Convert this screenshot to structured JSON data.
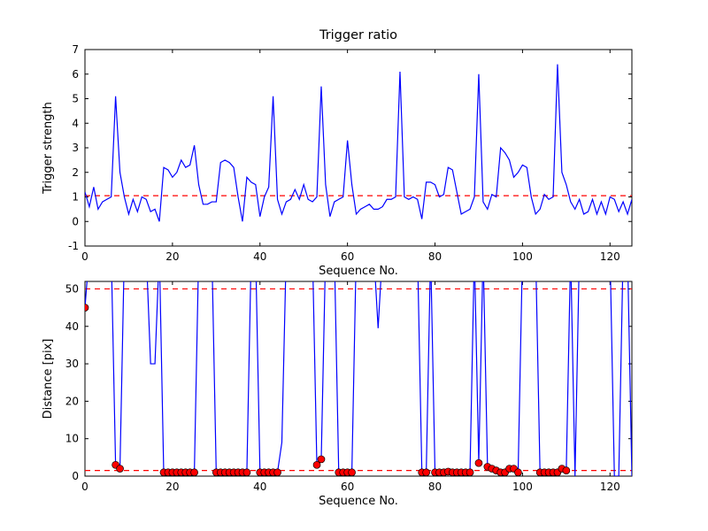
{
  "figure": {
    "background": "#ffffff",
    "line_color": "#0000ff",
    "threshold_color": "#ff0000",
    "marker_face_color": "#ff0000",
    "marker_edge_color": "#000000",
    "axis_color": "#000000"
  },
  "chart_data": [
    {
      "type": "line",
      "title": "Trigger ratio",
      "xlabel": "Sequence No.",
      "ylabel": "Trigger strength",
      "xlim": [
        0,
        125
      ],
      "ylim": [
        -1,
        7
      ],
      "xticks": [
        0,
        20,
        40,
        60,
        80,
        100,
        120
      ],
      "yticks": [
        -1,
        0,
        1,
        2,
        3,
        4,
        5,
        6,
        7
      ],
      "grid": false,
      "legend": "none",
      "threshold_lines": [
        1.05
      ],
      "x_mode": "index",
      "y": [
        1.2,
        0.6,
        1.4,
        0.5,
        0.8,
        0.9,
        1.0,
        5.1,
        2.0,
        1.0,
        0.3,
        0.9,
        0.4,
        1.0,
        0.9,
        0.4,
        0.5,
        0.0,
        2.2,
        2.1,
        1.8,
        2.0,
        2.5,
        2.2,
        2.3,
        3.1,
        1.5,
        0.7,
        0.7,
        0.8,
        0.8,
        2.4,
        2.5,
        2.4,
        2.2,
        1.0,
        0.0,
        1.8,
        1.6,
        1.5,
        0.2,
        1.0,
        1.4,
        5.1,
        0.9,
        0.3,
        0.8,
        0.9,
        1.3,
        0.9,
        1.5,
        0.9,
        0.8,
        1.0,
        5.5,
        1.5,
        0.2,
        0.8,
        0.9,
        1.0,
        3.3,
        1.5,
        0.3,
        0.5,
        0.6,
        0.7,
        0.5,
        0.5,
        0.6,
        0.9,
        0.9,
        1.0,
        6.1,
        1.0,
        0.9,
        1.0,
        0.9,
        0.1,
        1.6,
        1.6,
        1.5,
        1.0,
        1.1,
        2.2,
        2.1,
        1.2,
        0.3,
        0.4,
        0.5,
        1.0,
        6.0,
        0.8,
        0.5,
        1.1,
        1.0,
        3.0,
        2.8,
        2.5,
        1.8,
        2.0,
        2.3,
        2.2,
        1.0,
        0.3,
        0.5,
        1.1,
        0.9,
        1.0,
        6.4,
        2.0,
        1.5,
        0.8,
        0.5,
        0.9,
        0.3,
        0.4,
        0.9,
        0.3,
        0.8,
        0.3,
        1.0,
        0.9,
        0.4,
        0.8,
        0.3,
        0.9
      ]
    },
    {
      "type": "line",
      "title": "",
      "xlabel": "Sequence No.",
      "ylabel": "Distance [pix]",
      "xlim": [
        0,
        125
      ],
      "ylim": [
        0,
        52
      ],
      "xticks": [
        0,
        20,
        40,
        60,
        80,
        100,
        120
      ],
      "yticks": [
        0,
        10,
        20,
        30,
        40,
        50
      ],
      "grid": false,
      "legend": "none",
      "threshold_lines": [
        50,
        1.5
      ],
      "x_mode": "index",
      "offscale_value": 60,
      "y": [
        45,
        60,
        60,
        60,
        60,
        60,
        60,
        3,
        2,
        60,
        60,
        60,
        60,
        60,
        60,
        30,
        30,
        60,
        1,
        1,
        1,
        1,
        1,
        1,
        1,
        1,
        60,
        60,
        60,
        60,
        1,
        1,
        1,
        1,
        1,
        1,
        1,
        1,
        60,
        60,
        1,
        1,
        1,
        1,
        1,
        9,
        60,
        60,
        60,
        60,
        60,
        60,
        60,
        3,
        4.5,
        60,
        60,
        60,
        1,
        1,
        1,
        1,
        60,
        60,
        60,
        60,
        60,
        39.5,
        60,
        60,
        60,
        60,
        60,
        60,
        60,
        60,
        60,
        1,
        1,
        60,
        1,
        1,
        1,
        1.2,
        1,
        1,
        1,
        1,
        1,
        60,
        3.5,
        60,
        2.5,
        2,
        1.5,
        1,
        1,
        2,
        2,
        1,
        60,
        60,
        60,
        60,
        1,
        1,
        1,
        1,
        1,
        2,
        1.5,
        60,
        0,
        60,
        60,
        60,
        60,
        60,
        60,
        60,
        60,
        0,
        0,
        60,
        60,
        0
      ],
      "markers": [
        [
          0,
          45
        ],
        [
          7,
          3
        ],
        [
          8,
          2
        ],
        [
          18,
          1
        ],
        [
          19,
          1
        ],
        [
          20,
          1
        ],
        [
          21,
          1
        ],
        [
          22,
          1
        ],
        [
          23,
          1
        ],
        [
          24,
          1
        ],
        [
          25,
          1
        ],
        [
          30,
          1
        ],
        [
          31,
          1
        ],
        [
          32,
          1
        ],
        [
          33,
          1
        ],
        [
          34,
          1
        ],
        [
          35,
          1
        ],
        [
          36,
          1
        ],
        [
          37,
          1
        ],
        [
          40,
          1
        ],
        [
          41,
          1
        ],
        [
          42,
          1
        ],
        [
          43,
          1
        ],
        [
          44,
          1
        ],
        [
          53,
          3
        ],
        [
          54,
          4.5
        ],
        [
          58,
          1
        ],
        [
          59,
          1
        ],
        [
          60,
          1
        ],
        [
          61,
          1
        ],
        [
          77,
          1
        ],
        [
          78,
          1
        ],
        [
          80,
          1
        ],
        [
          81,
          1
        ],
        [
          82,
          1
        ],
        [
          83,
          1.2
        ],
        [
          84,
          1
        ],
        [
          85,
          1
        ],
        [
          86,
          1
        ],
        [
          87,
          1
        ],
        [
          88,
          1
        ],
        [
          90,
          3.5
        ],
        [
          92,
          2.5
        ],
        [
          93,
          2
        ],
        [
          94,
          1.5
        ],
        [
          95,
          1
        ],
        [
          96,
          1
        ],
        [
          97,
          2
        ],
        [
          98,
          2
        ],
        [
          99,
          1
        ],
        [
          104,
          1
        ],
        [
          105,
          1
        ],
        [
          106,
          1
        ],
        [
          107,
          1
        ],
        [
          108,
          1
        ],
        [
          109,
          2
        ],
        [
          110,
          1.5
        ]
      ]
    }
  ]
}
